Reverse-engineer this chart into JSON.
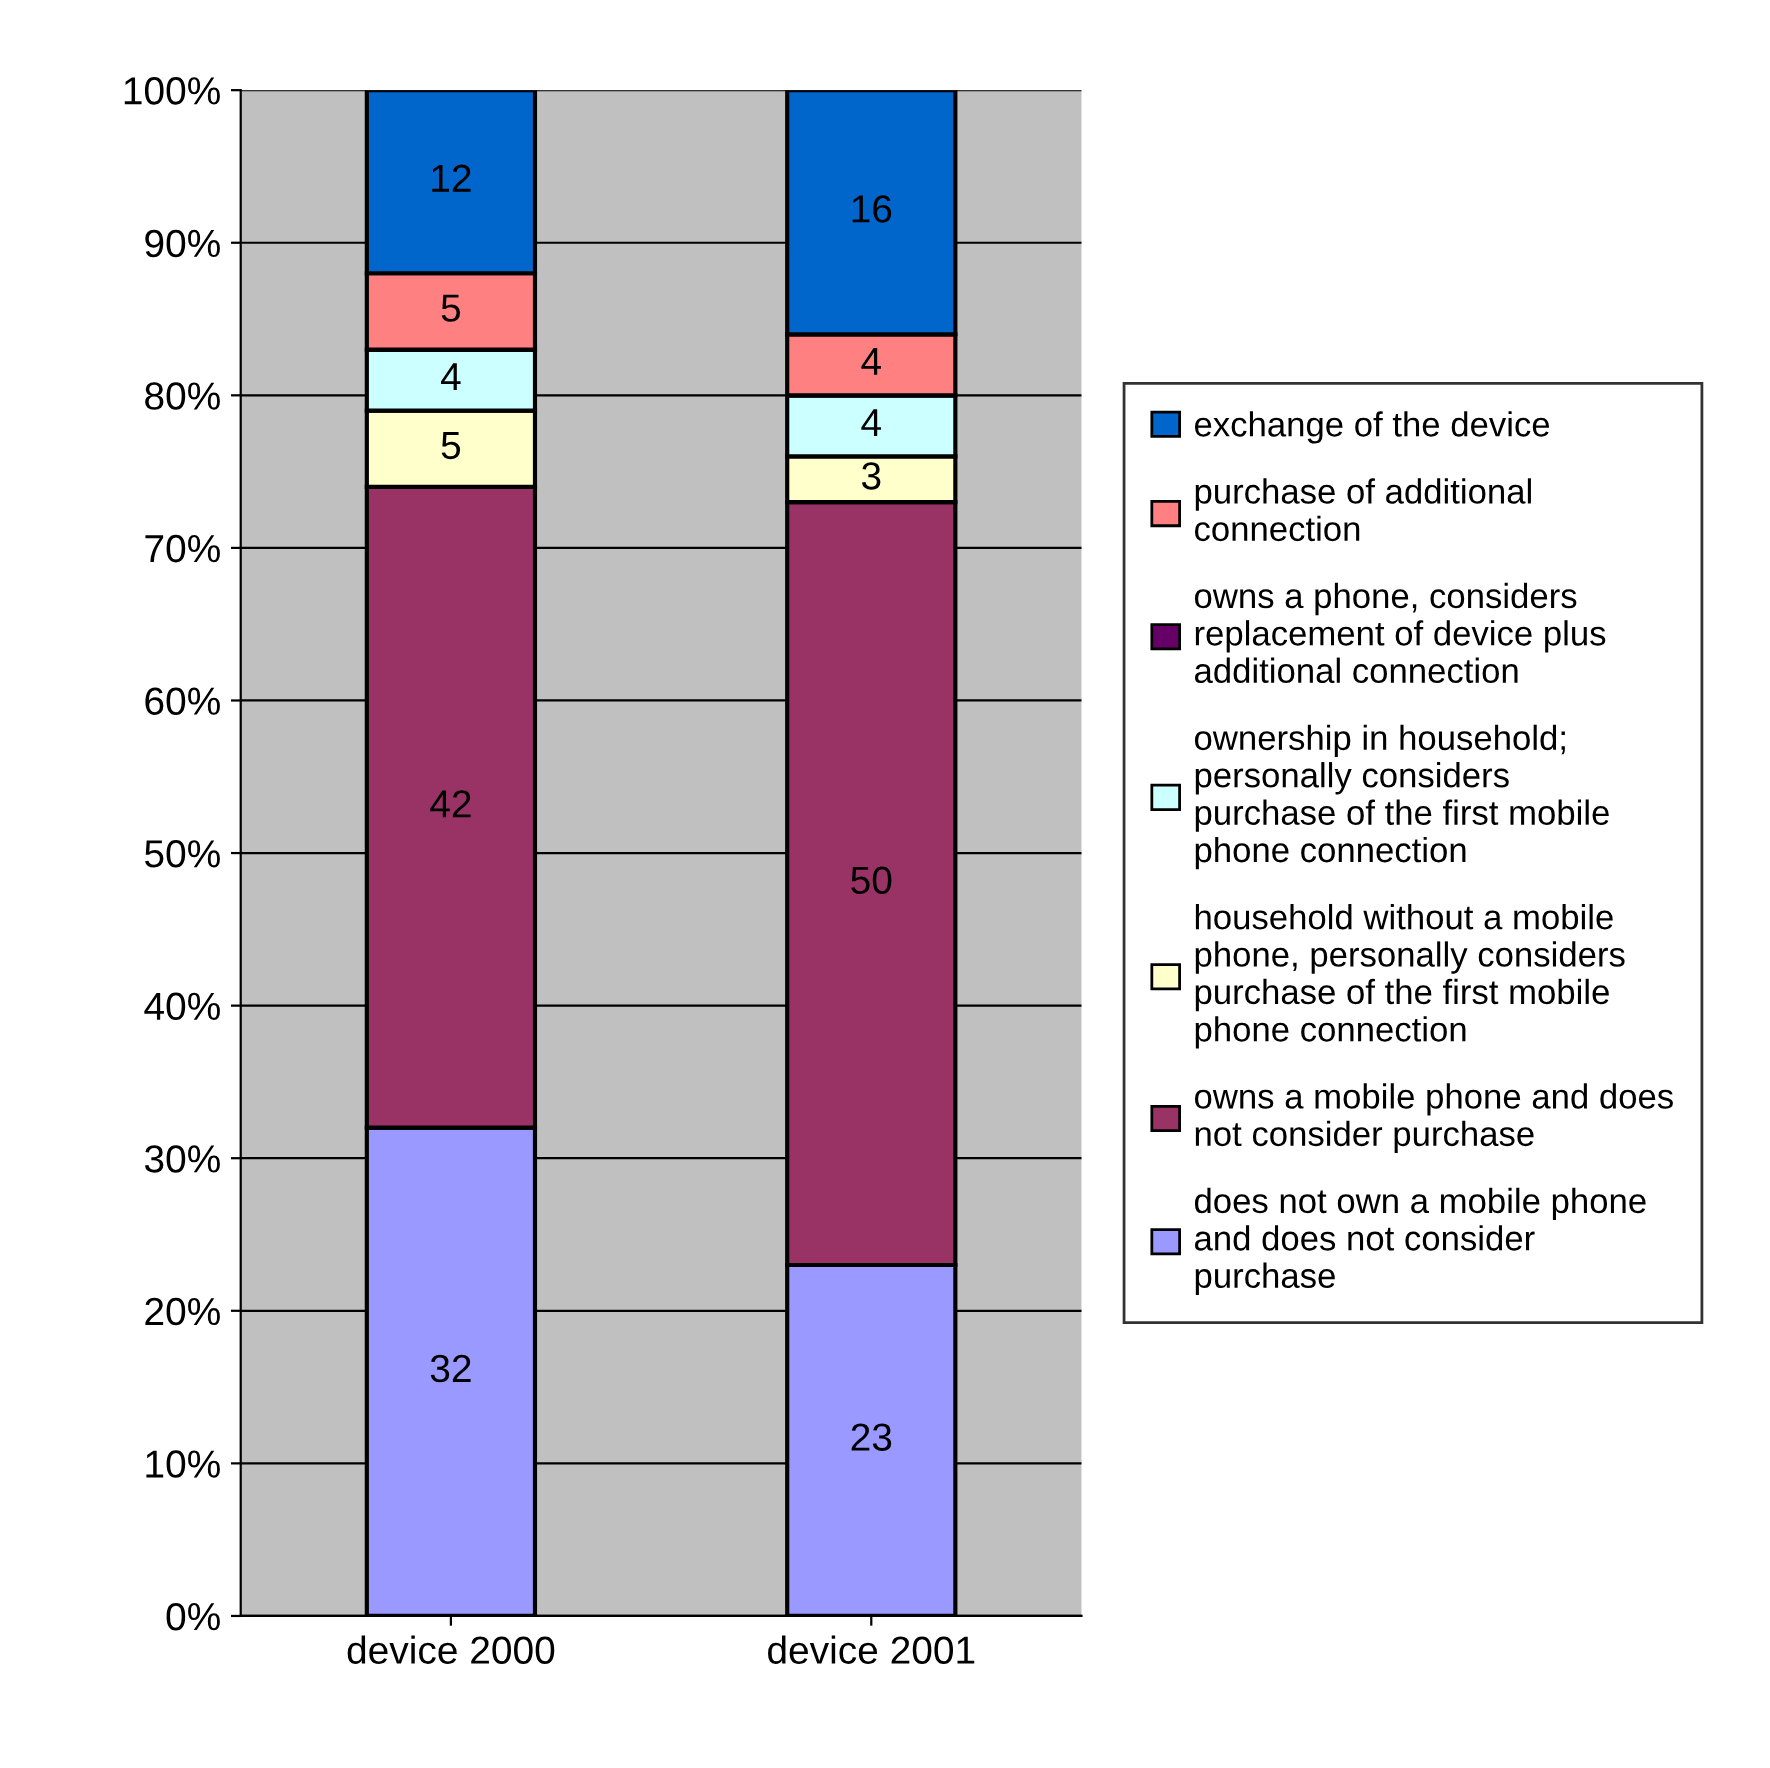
{
  "chart_data": {
    "type": "bar",
    "stacked": true,
    "categories": [
      "device 2000",
      "device 2001"
    ],
    "series": [
      {
        "name": "does not own a mobile phone and does not consider purchase",
        "color": "#9999ff",
        "values": [
          32,
          23
        ],
        "value_labels": [
          "32",
          "23"
        ]
      },
      {
        "name": "owns a mobile phone and does not consider purchase",
        "color": "#993366",
        "values": [
          42,
          50
        ],
        "value_labels": [
          "42",
          "50"
        ]
      },
      {
        "name": "household without a mobile phone, personally considers purchase of the first mobile phone connection",
        "color": "#ffffcc",
        "values": [
          5,
          3
        ],
        "value_labels": [
          "5",
          "3"
        ]
      },
      {
        "name": "ownership in household; personally considers purchase of the first mobile phone connection",
        "color": "#ccffff",
        "values": [
          4,
          4
        ],
        "value_labels": [
          "4",
          "4"
        ]
      },
      {
        "name": "owns a phone, considers replacement of device plus additional connection",
        "color": "#660066",
        "values": [
          0,
          0
        ],
        "value_labels": [
          null,
          null
        ]
      },
      {
        "name": "purchase of additional connection",
        "color": "#ff8080",
        "values": [
          5,
          4
        ],
        "value_labels": [
          "5",
          "4"
        ]
      },
      {
        "name": "exchange of the device",
        "color": "#0066cc",
        "values": [
          12,
          16
        ],
        "value_labels": [
          "12",
          "16"
        ]
      }
    ],
    "ylim": [
      0,
      100
    ],
    "yticks": [
      {
        "value": 0,
        "label": "0%"
      },
      {
        "value": 10,
        "label": "10%"
      },
      {
        "value": 20,
        "label": "20%"
      },
      {
        "value": 30,
        "label": "30%"
      },
      {
        "value": 40,
        "label": "40%"
      },
      {
        "value": 50,
        "label": "50%"
      },
      {
        "value": 60,
        "label": "60%"
      },
      {
        "value": 70,
        "label": "70%"
      },
      {
        "value": 80,
        "label": "80%"
      },
      {
        "value": 90,
        "label": "90%"
      },
      {
        "value": 100,
        "label": "100%"
      }
    ],
    "grid": "y",
    "legend": "right"
  }
}
